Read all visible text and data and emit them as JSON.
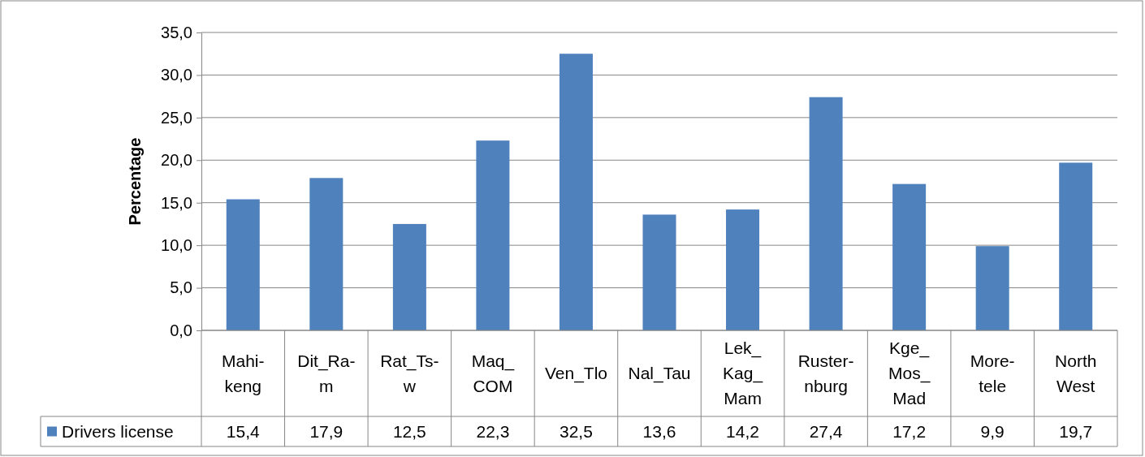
{
  "chart_data": {
    "type": "bar",
    "ylabel": "Percentage",
    "categories": [
      "Mahi-keng",
      "Dit_Ra-m",
      "Rat_Ts-w",
      "Maq_COM",
      "Ven_Tlo",
      "Nal_Tau",
      "Lek_Kag_Mam",
      "Ruster-nburg",
      "Kge_Mos_Mad",
      "More-tele",
      "North West"
    ],
    "series": [
      {
        "name": "Drivers license",
        "color": "#4f81bd",
        "values": [
          15.4,
          17.9,
          12.5,
          22.3,
          32.5,
          13.6,
          14.2,
          27.4,
          17.2,
          9.9,
          19.7
        ],
        "value_labels": [
          "15,4",
          "17,9",
          "12,5",
          "22,3",
          "32,5",
          "13,6",
          "14,2",
          "27,4",
          "17,2",
          "9,9",
          "19,7"
        ]
      }
    ],
    "ylim": [
      0,
      35
    ],
    "yticks": [
      {
        "value": 0,
        "label": "0,0"
      },
      {
        "value": 5,
        "label": "5,0"
      },
      {
        "value": 10,
        "label": "10,0"
      },
      {
        "value": 15,
        "label": "15,0"
      },
      {
        "value": 20,
        "label": "20,0"
      },
      {
        "value": 25,
        "label": "25,0"
      },
      {
        "value": 30,
        "label": "30,0"
      },
      {
        "value": 35,
        "label": "35,0"
      }
    ],
    "grid": "y",
    "legend": "bottom"
  }
}
